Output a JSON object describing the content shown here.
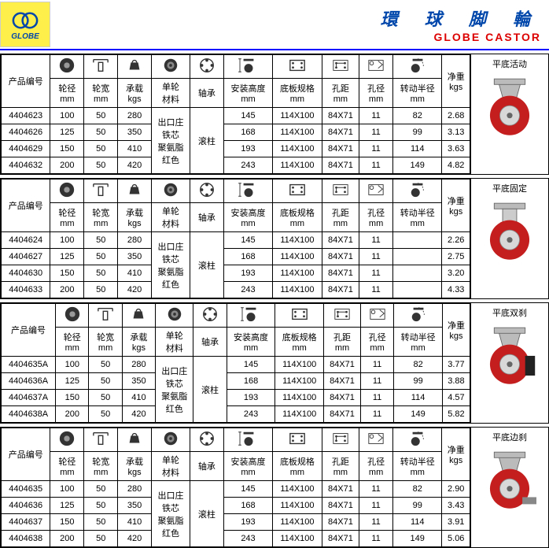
{
  "header": {
    "cn": "環 球 脚 輪",
    "en": "GLOBE   CASTOR",
    "logo": "GLOBE"
  },
  "labels": {
    "code": "产品编号",
    "wd": "轮径",
    "ww": "轮宽",
    "load": "承载",
    "mat": "单轮\n材料",
    "bear": "轴承",
    "mh": "安装高度",
    "bp": "底板规格",
    "ph": "孔距",
    "hd": "孔径",
    "tr": "转动半径",
    "nw": "净重",
    "mm": "mm",
    "kgs": "kgs"
  },
  "material": "出口庄\n铁芯\n聚氨脂\n红色",
  "bearing": "滚柱",
  "sections": [
    {
      "title": "平底活动",
      "type": "swivel",
      "rows": [
        [
          "4404623",
          "100",
          "50",
          "280",
          "145",
          "114X100",
          "84X71",
          "11",
          "82",
          "2.68"
        ],
        [
          "4404626",
          "125",
          "50",
          "350",
          "168",
          "114X100",
          "84X71",
          "11",
          "99",
          "3.13"
        ],
        [
          "4404629",
          "150",
          "50",
          "410",
          "193",
          "114X100",
          "84X71",
          "11",
          "114",
          "3.63"
        ],
        [
          "4404632",
          "200",
          "50",
          "420",
          "243",
          "114X100",
          "84X71",
          "11",
          "149",
          "4.82"
        ]
      ]
    },
    {
      "title": "平底固定",
      "type": "fixed",
      "rows": [
        [
          "4404624",
          "100",
          "50",
          "280",
          "145",
          "114X100",
          "84X71",
          "11",
          "",
          "2.26"
        ],
        [
          "4404627",
          "125",
          "50",
          "350",
          "168",
          "114X100",
          "84X71",
          "11",
          "",
          "2.75"
        ],
        [
          "4404630",
          "150",
          "50",
          "410",
          "193",
          "114X100",
          "84X71",
          "11",
          "",
          "3.20"
        ],
        [
          "4404633",
          "200",
          "50",
          "420",
          "243",
          "114X100",
          "84X71",
          "11",
          "",
          "4.33"
        ]
      ]
    },
    {
      "title": "平底双刹",
      "type": "brake2",
      "rows": [
        [
          "4404635A",
          "100",
          "50",
          "280",
          "145",
          "114X100",
          "84X71",
          "11",
          "82",
          "3.77"
        ],
        [
          "4404636A",
          "125",
          "50",
          "350",
          "168",
          "114X100",
          "84X71",
          "11",
          "99",
          "3.88"
        ],
        [
          "4404637A",
          "150",
          "50",
          "410",
          "193",
          "114X100",
          "84X71",
          "11",
          "114",
          "4.57"
        ],
        [
          "4404638A",
          "200",
          "50",
          "420",
          "243",
          "114X100",
          "84X71",
          "11",
          "149",
          "5.82"
        ]
      ]
    },
    {
      "title": "平底边刹",
      "type": "brake1",
      "rows": [
        [
          "4404635",
          "100",
          "50",
          "280",
          "145",
          "114X100",
          "84X71",
          "11",
          "82",
          "2.90"
        ],
        [
          "4404636",
          "125",
          "50",
          "350",
          "168",
          "114X100",
          "84X71",
          "11",
          "99",
          "3.43"
        ],
        [
          "4404637",
          "150",
          "50",
          "410",
          "193",
          "114X100",
          "84X71",
          "11",
          "114",
          "3.91"
        ],
        [
          "4404638",
          "200",
          "50",
          "420",
          "243",
          "114X100",
          "84X71",
          "11",
          "149",
          "5.06"
        ]
      ]
    }
  ]
}
